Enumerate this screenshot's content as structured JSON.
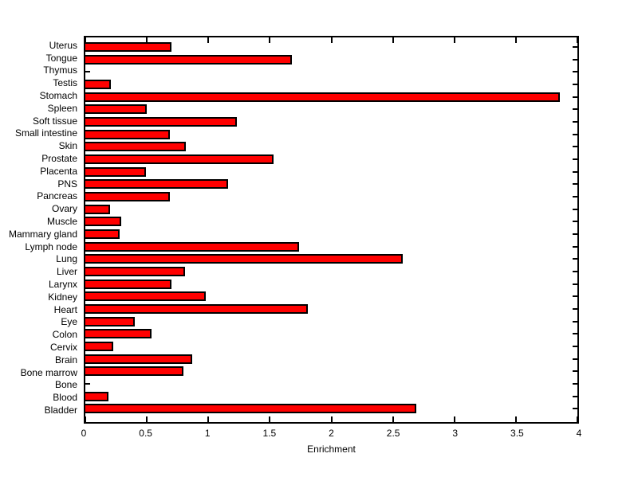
{
  "chart_data": {
    "type": "bar",
    "orientation": "horizontal",
    "title": "",
    "xlabel": "Enrichment",
    "ylabel": "",
    "xlim": [
      0,
      4
    ],
    "x_ticks": [
      "0",
      "0.5",
      "1",
      "1.5",
      "2",
      "2.5",
      "3",
      "3.5",
      "4"
    ],
    "grid": false,
    "legend": "none",
    "bar_color": "#ff0000",
    "bar_border_color": "#000000",
    "axis_color": "#000000",
    "background_color": "#ffffff",
    "categories": [
      "Uterus",
      "Tongue",
      "Thymus",
      "Testis",
      "Stomach",
      "Spleen",
      "Soft tissue",
      "Small intestine",
      "Skin",
      "Prostate",
      "Placenta",
      "PNS",
      "Pancreas",
      "Ovary",
      "Muscle",
      "Mammary gland",
      "Lymph node",
      "Lung",
      "Liver",
      "Larynx",
      "Kidney",
      "Heart",
      "Eye",
      "Colon",
      "Cervix",
      "Brain",
      "Bone marrow",
      "Bone",
      "Blood",
      "Bladder"
    ],
    "values": [
      0.7,
      1.68,
      0,
      0.21,
      3.86,
      0.5,
      1.23,
      0.69,
      0.82,
      1.53,
      0.49,
      1.16,
      0.69,
      0.2,
      0.29,
      0.28,
      1.74,
      2.58,
      0.81,
      0.7,
      0.98,
      1.81,
      0.4,
      0.54,
      0.23,
      0.87,
      0.8,
      0,
      0.19,
      2.69
    ]
  }
}
